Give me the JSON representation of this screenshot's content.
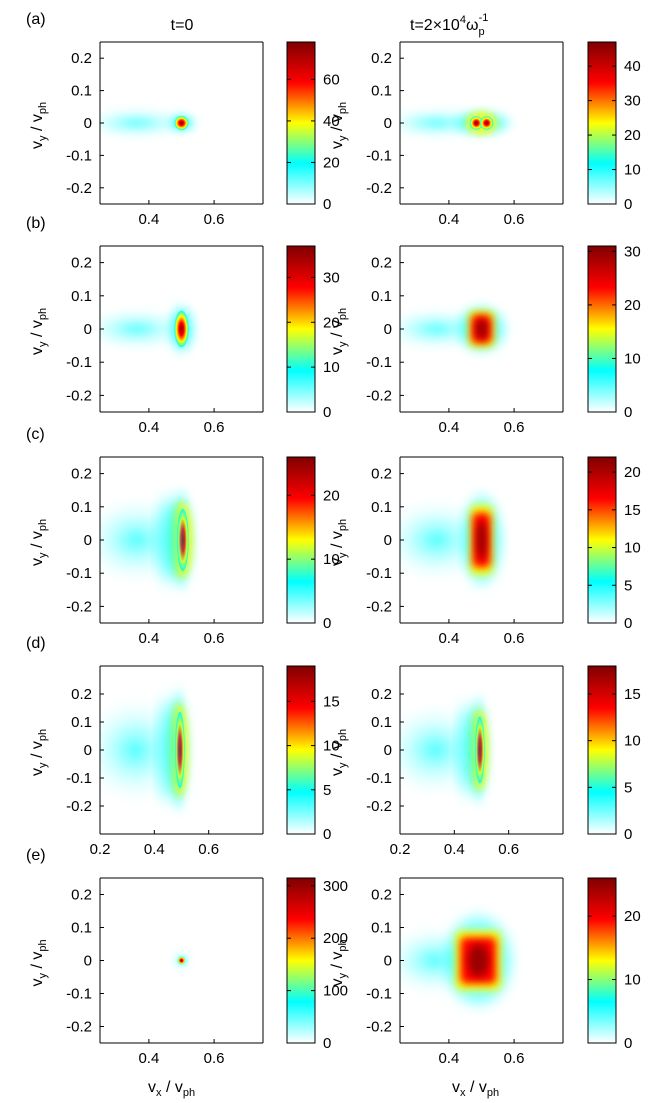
{
  "chart_data": {
    "type": "heatmap",
    "figure": "Velocity-space distribution f(v_x, v_y) at t=0 and at late time, five cases (a)-(e)",
    "column_titles": [
      "t=0",
      "t=2×10⁴ω_p⁻¹"
    ],
    "column_titles_display": [
      "t=0",
      "t=2×10",
      "4",
      "ω",
      "p",
      "-1"
    ],
    "xlabel": {
      "base": "v",
      "sub": "x",
      "sep": " / ",
      "base2": "v",
      "sub2": "ph"
    },
    "ylabel": {
      "base": "v",
      "sub": "y",
      "sep": " / ",
      "base2": "v",
      "sub2": "ph"
    },
    "colormap": [
      "#ffffff",
      "#00ffff",
      "#ffff00",
      "#ff0000",
      "#800000"
    ],
    "rows": [
      {
        "label": "(a)",
        "panels": [
          {
            "col": 0,
            "xlim": [
              0.25,
              0.75
            ],
            "ylim": [
              -0.25,
              0.25
            ],
            "xticks": [
              "0.4",
              "0.6"
            ],
            "xtick_vals": [
              0.4,
              0.6
            ],
            "yticks": [
              "0.2",
              "0.1",
              "0",
              "-0.1",
              "-0.2"
            ],
            "ytick_vals": [
              0.2,
              0.1,
              0,
              -0.1,
              -0.2
            ],
            "colorbar": {
              "min": 0,
              "max": 78,
              "ticks": [
                "0",
                "20",
                "40",
                "60"
              ],
              "tick_vals": [
                0,
                20,
                40,
                60
              ]
            },
            "core": {
              "cx": 0.5,
              "cy": 0.0,
              "sx": 0.022,
              "sy": 0.022,
              "shape": "circle"
            }
          },
          {
            "col": 1,
            "xlim": [
              0.25,
              0.75
            ],
            "ylim": [
              -0.25,
              0.25
            ],
            "xticks": [
              "0.4",
              "0.6"
            ],
            "xtick_vals": [
              0.4,
              0.6
            ],
            "yticks": [
              "0.2",
              "0.1",
              "0",
              "-0.1",
              "-0.2"
            ],
            "ytick_vals": [
              0.2,
              0.1,
              0,
              -0.1,
              -0.2
            ],
            "colorbar": {
              "min": 0,
              "max": 47,
              "ticks": [
                "0",
                "10",
                "20",
                "30",
                "40"
              ],
              "tick_vals": [
                0,
                10,
                20,
                30,
                40
              ]
            },
            "core": {
              "cx": 0.5,
              "cy": 0.0,
              "sx": 0.045,
              "sy": 0.03,
              "shape": "double"
            }
          }
        ]
      },
      {
        "label": "(b)",
        "panels": [
          {
            "col": 0,
            "xlim": [
              0.25,
              0.75
            ],
            "ylim": [
              -0.25,
              0.25
            ],
            "xticks": [
              "0.4",
              "0.6"
            ],
            "xtick_vals": [
              0.4,
              0.6
            ],
            "yticks": [
              "0.2",
              "0.1",
              "0",
              "-0.1",
              "-0.2"
            ],
            "ytick_vals": [
              0.2,
              0.1,
              0,
              -0.1,
              -0.2
            ],
            "colorbar": {
              "min": 0,
              "max": 37,
              "ticks": [
                "0",
                "10",
                "20",
                "30"
              ],
              "tick_vals": [
                0,
                10,
                20,
                30
              ]
            },
            "core": {
              "cx": 0.5,
              "cy": 0.0,
              "sx": 0.022,
              "sy": 0.055,
              "shape": "ellipse"
            }
          },
          {
            "col": 1,
            "xlim": [
              0.25,
              0.75
            ],
            "ylim": [
              -0.25,
              0.25
            ],
            "xticks": [
              "0.4",
              "0.6"
            ],
            "xtick_vals": [
              0.4,
              0.6
            ],
            "yticks": [
              "0.2",
              "0.1",
              "0",
              "-0.1",
              "-0.2"
            ],
            "ytick_vals": [
              0.2,
              0.1,
              0,
              -0.1,
              -0.2
            ],
            "colorbar": {
              "min": 0,
              "max": 31,
              "ticks": [
                "0",
                "10",
                "20",
                "30"
              ],
              "tick_vals": [
                0,
                10,
                20,
                30
              ]
            },
            "core": {
              "cx": 0.5,
              "cy": 0.0,
              "sx": 0.04,
              "sy": 0.055,
              "shape": "box"
            }
          }
        ]
      },
      {
        "label": "(c)",
        "panels": [
          {
            "col": 0,
            "xlim": [
              0.25,
              0.75
            ],
            "ylim": [
              -0.25,
              0.25
            ],
            "xticks": [
              "0.4",
              "0.6"
            ],
            "xtick_vals": [
              0.4,
              0.6
            ],
            "yticks": [
              "0.2",
              "0.1",
              "0",
              "-0.1",
              "-0.2"
            ],
            "ytick_vals": [
              0.2,
              0.1,
              0,
              -0.1,
              -0.2
            ],
            "colorbar": {
              "min": 0,
              "max": 26,
              "ticks": [
                "0",
                "10",
                "20"
              ],
              "tick_vals": [
                0,
                10,
                20
              ]
            },
            "core": {
              "cx": 0.5,
              "cy": 0.0,
              "sx": 0.02,
              "sy": 0.11,
              "shape": "crescent"
            }
          },
          {
            "col": 1,
            "xlim": [
              0.25,
              0.75
            ],
            "ylim": [
              -0.25,
              0.25
            ],
            "xticks": [
              "0.4",
              "0.6"
            ],
            "xtick_vals": [
              0.4,
              0.6
            ],
            "yticks": [
              "0.2",
              "0.1",
              "0",
              "-0.1",
              "-0.2"
            ],
            "ytick_vals": [
              0.2,
              0.1,
              0,
              -0.1,
              -0.2
            ],
            "colorbar": {
              "min": 0,
              "max": 22,
              "ticks": [
                "0",
                "5",
                "10",
                "15",
                "20"
              ],
              "tick_vals": [
                0,
                5,
                10,
                15,
                20
              ]
            },
            "core": {
              "cx": 0.5,
              "cy": 0.0,
              "sx": 0.035,
              "sy": 0.105,
              "shape": "box"
            }
          }
        ]
      },
      {
        "label": "(d)",
        "panels": [
          {
            "col": 0,
            "xlim": [
              0.2,
              0.8
            ],
            "ylim": [
              -0.3,
              0.3
            ],
            "xticks": [
              "0.2",
              "0.4",
              "0.6"
            ],
            "xtick_vals": [
              0.2,
              0.4,
              0.6
            ],
            "yticks": [
              "0.2",
              "0.1",
              "0",
              "-0.1",
              "-0.2"
            ],
            "ytick_vals": [
              0.2,
              0.1,
              0,
              -0.1,
              -0.2
            ],
            "colorbar": {
              "min": 0,
              "max": 19,
              "ticks": [
                "0",
                "5",
                "10",
                "15"
              ],
              "tick_vals": [
                0,
                5,
                10,
                15
              ]
            },
            "core": {
              "cx": 0.49,
              "cy": 0.0,
              "sx": 0.02,
              "sy": 0.16,
              "shape": "crescent"
            }
          },
          {
            "col": 1,
            "xlim": [
              0.2,
              0.8
            ],
            "ylim": [
              -0.3,
              0.3
            ],
            "xticks": [
              "0.2",
              "0.4",
              "0.6"
            ],
            "xtick_vals": [
              0.2,
              0.4,
              0.6
            ],
            "yticks": [
              "0.2",
              "0.1",
              "0",
              "-0.1",
              "-0.2"
            ],
            "ytick_vals": [
              0.2,
              0.1,
              0,
              -0.1,
              -0.2
            ],
            "colorbar": {
              "min": 0,
              "max": 18,
              "ticks": [
                "0",
                "5",
                "10",
                "15"
              ],
              "tick_vals": [
                0,
                5,
                10,
                15
              ]
            },
            "core": {
              "cx": 0.49,
              "cy": 0.0,
              "sx": 0.02,
              "sy": 0.14,
              "shape": "crescent"
            }
          }
        ]
      },
      {
        "label": "(e)",
        "panels": [
          {
            "col": 0,
            "xlim": [
              0.25,
              0.75
            ],
            "ylim": [
              -0.25,
              0.25
            ],
            "xticks": [
              "0.4",
              "0.6"
            ],
            "xtick_vals": [
              0.4,
              0.6
            ],
            "yticks": [
              "0.2",
              "0.1",
              "0",
              "-0.1",
              "-0.2"
            ],
            "ytick_vals": [
              0.2,
              0.1,
              0,
              -0.1,
              -0.2
            ],
            "colorbar": {
              "min": 0,
              "max": 315,
              "ticks": [
                "0",
                "100",
                "200",
                "300"
              ],
              "tick_vals": [
                0,
                100,
                200,
                300
              ]
            },
            "core": {
              "cx": 0.5,
              "cy": 0.0,
              "sx": 0.012,
              "sy": 0.012,
              "shape": "dot"
            }
          },
          {
            "col": 1,
            "xlim": [
              0.25,
              0.75
            ],
            "ylim": [
              -0.25,
              0.25
            ],
            "xticks": [
              "0.4",
              "0.6"
            ],
            "xtick_vals": [
              0.4,
              0.6
            ],
            "yticks": [
              "0.2",
              "0.1",
              "0",
              "-0.1",
              "-0.2"
            ],
            "ytick_vals": [
              0.2,
              0.1,
              0,
              -0.1,
              -0.2
            ],
            "colorbar": {
              "min": 0,
              "max": 26,
              "ticks": [
                "0",
                "10",
                "20"
              ],
              "tick_vals": [
                0,
                10,
                20
              ]
            },
            "core": {
              "cx": 0.49,
              "cy": 0.0,
              "sx": 0.07,
              "sy": 0.09,
              "shape": "square"
            }
          }
        ]
      }
    ]
  }
}
